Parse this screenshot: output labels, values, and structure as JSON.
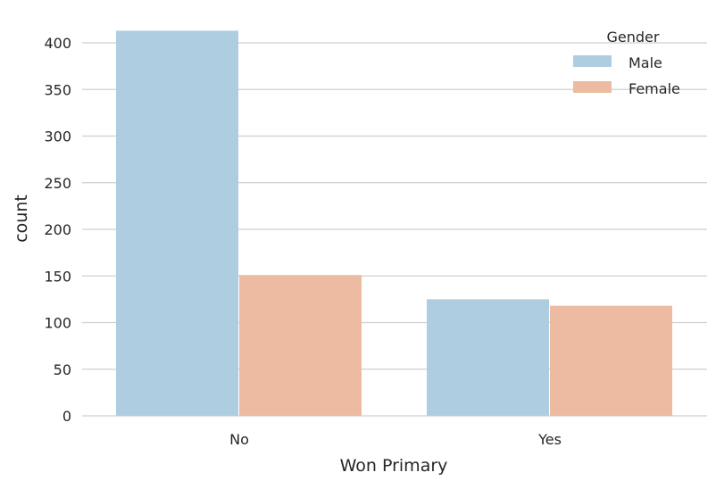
{
  "chart_data": {
    "type": "bar",
    "title": "",
    "xlabel": "Won Primary",
    "ylabel": "count",
    "categories": [
      "No",
      "Yes"
    ],
    "series": [
      {
        "name": "Male",
        "values": [
          413,
          125
        ],
        "color": "#aecde1"
      },
      {
        "name": "Female",
        "values": [
          151,
          118
        ],
        "color": "#ecbba1"
      }
    ],
    "ylim": [
      0,
      420
    ],
    "yticks": [
      0,
      50,
      100,
      150,
      200,
      250,
      300,
      350,
      400
    ],
    "grid": "horizontal",
    "legend": {
      "title": "Gender",
      "placement": "top-right"
    }
  }
}
